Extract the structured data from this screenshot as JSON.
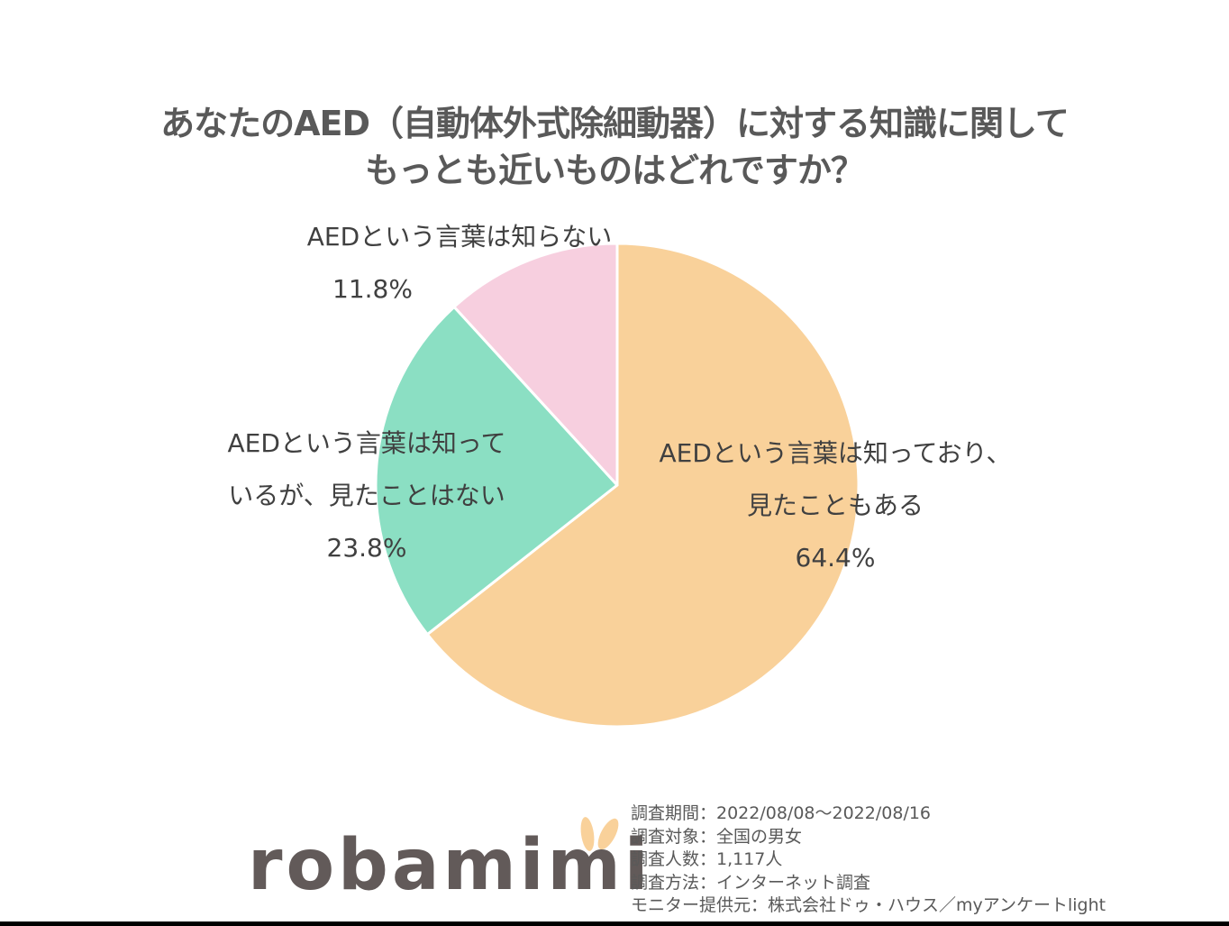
{
  "title": {
    "line1": "あなたのAED（自動体外式除細動器）に対する知識に関して",
    "line2": "もっとも近いものはどれですか？"
  },
  "chart_data": {
    "type": "pie",
    "title": "あなたのAED（自動体外式除細動器）に対する知識に関して もっとも近いものはどれですか？",
    "categories": [
      "AEDという言葉は知っており、見たこともある",
      "AEDという言葉は知っているが、見たことはない",
      "AEDという言葉は知らない"
    ],
    "values": [
      64.4,
      23.8,
      11.8
    ],
    "unit": "%",
    "colors": [
      "#f9d19a",
      "#8bdfc3",
      "#f7cfdf"
    ],
    "start_angle": "12 o'clock",
    "direction": "clockwise",
    "legend": "none (labels on/near slices)"
  },
  "labels": {
    "slice1": {
      "line1": "AEDという言葉は知っており、",
      "line2": "見たこともある",
      "pct": "64.4%"
    },
    "slice2": {
      "line1": "AEDという言葉は知って",
      "line2": "いるが、見たことはない",
      "pct": "23.8%"
    },
    "slice3": {
      "line1": "AEDという言葉は知らない",
      "pct": "11.8%"
    }
  },
  "logo": {
    "text": "robamimi",
    "text_color": "#625a59",
    "accent_color": "#f9d19a"
  },
  "survey_info": [
    "調査期間：2022/08/08～2022/08/16",
    "調査対象：全国の男女",
    "調査人数：1,117人",
    "調査方法：インターネット調査",
    "モニター提供元：株式会社ドゥ・ハウス／myアンケートlight"
  ]
}
